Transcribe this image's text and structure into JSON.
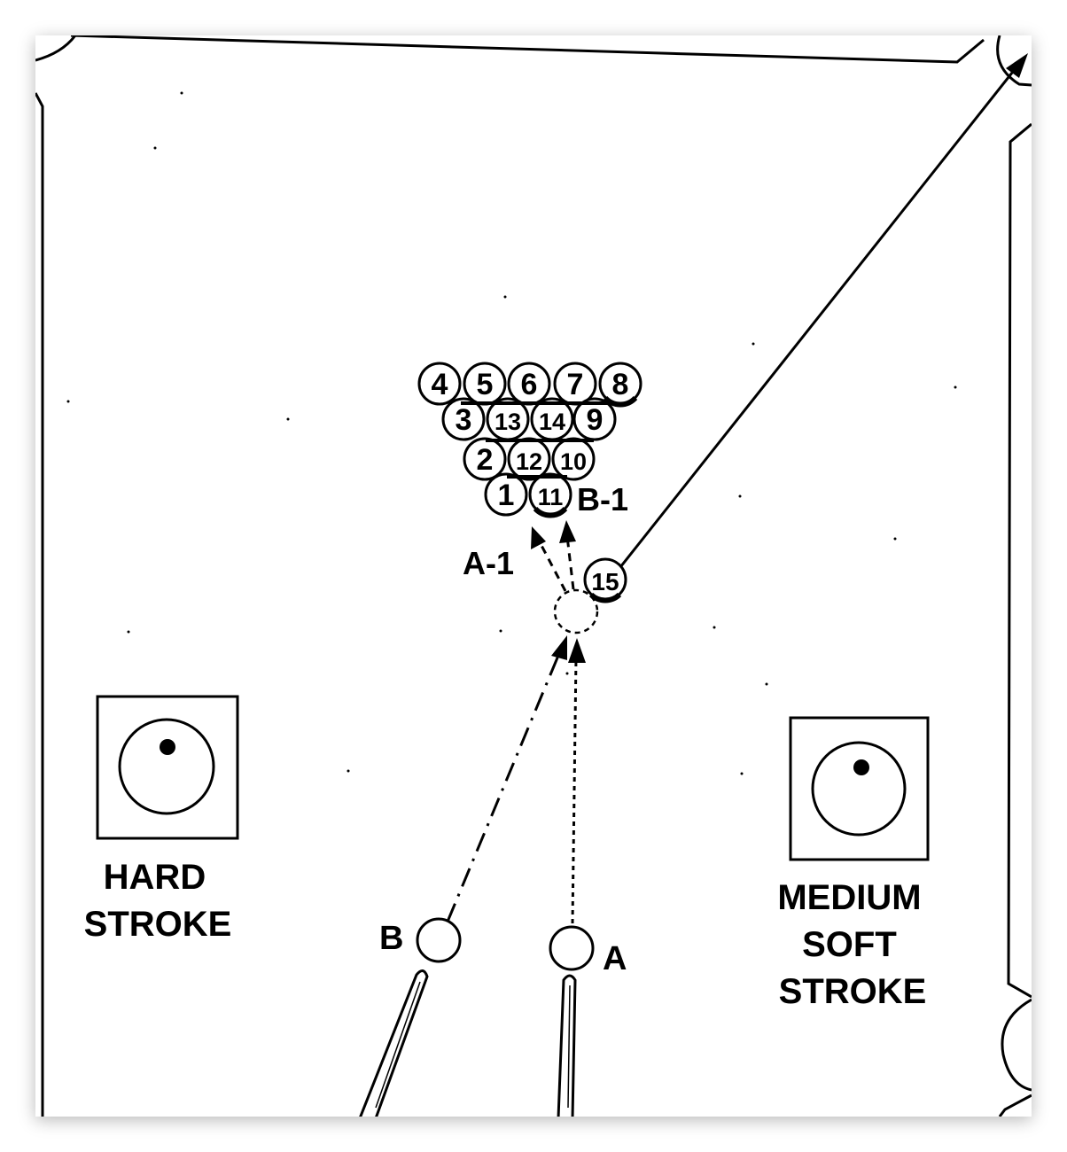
{
  "rack": {
    "row1": [
      "4",
      "5",
      "6",
      "7",
      "8"
    ],
    "row2": [
      "3",
      "13",
      "14",
      "9"
    ],
    "row3": [
      "2",
      "12",
      "10"
    ],
    "row4": [
      "1",
      "11"
    ]
  },
  "object_ball": "15",
  "labels": {
    "b1": "B-1",
    "a1": "A-1",
    "b": "B",
    "a": "A"
  },
  "strokes": {
    "hard": [
      "HARD",
      "STROKE"
    ],
    "medium_soft": [
      "MEDIUM",
      "SOFT",
      "STROKE"
    ]
  }
}
